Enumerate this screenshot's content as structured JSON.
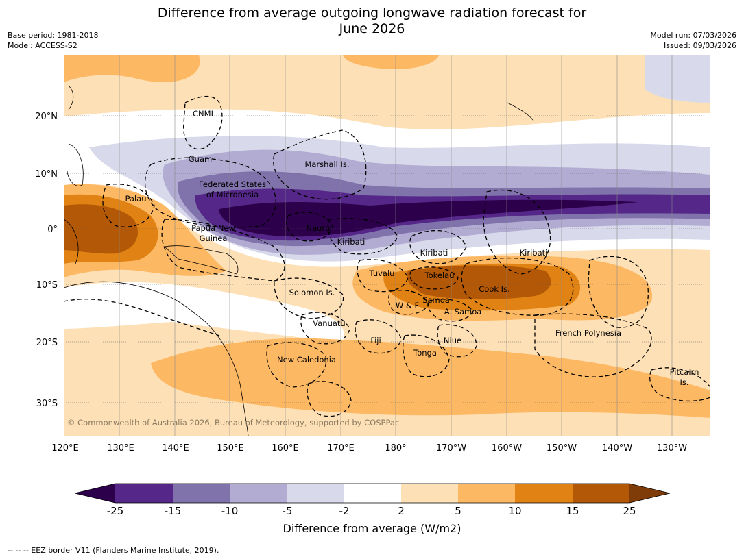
{
  "header": {
    "title_line1": "Difference from average outgoing longwave radiation forecast for",
    "title_line2": "June 2026",
    "base_period": "Base period: 1981-2018",
    "model": "Model: ACCESS-S2",
    "model_run": "Model run: 07/03/2026",
    "issued": "Issued: 09/03/2026"
  },
  "map": {
    "lon_labels": [
      "120°E",
      "130°E",
      "140°E",
      "150°E",
      "160°E",
      "170°E",
      "180°",
      "170°W",
      "160°W",
      "150°W",
      "140°W",
      "130°W"
    ],
    "lat_labels": [
      "20°N",
      "10°N",
      "0°",
      "10°S",
      "20°S",
      "30°S"
    ],
    "region_labels": [
      {
        "id": "cnmi",
        "text": "CNMI"
      },
      {
        "id": "guam",
        "text": "Guam"
      },
      {
        "id": "marshall",
        "text": "Marshall Is."
      },
      {
        "id": "fsm1",
        "text": "Federated States"
      },
      {
        "id": "fsm2",
        "text": "of Micronesia"
      },
      {
        "id": "palau",
        "text": "Palau"
      },
      {
        "id": "png1",
        "text": "Papua New"
      },
      {
        "id": "png2",
        "text": "Guinea"
      },
      {
        "id": "nauru",
        "text": "Nauru"
      },
      {
        "id": "kiribati1",
        "text": "Kiribati"
      },
      {
        "id": "kiribati2",
        "text": "Kiribati"
      },
      {
        "id": "kiribati3",
        "text": "Kiribati"
      },
      {
        "id": "tuvalu",
        "text": "Tuvalu"
      },
      {
        "id": "tokelau",
        "text": "Tokelau"
      },
      {
        "id": "cook",
        "text": "Cook Is."
      },
      {
        "id": "solomon",
        "text": "Solomon Is."
      },
      {
        "id": "wf",
        "text": "W & F"
      },
      {
        "id": "samoa",
        "text": "Samoa"
      },
      {
        "id": "asamoa",
        "text": "A. Samoa"
      },
      {
        "id": "vanuatu",
        "text": "Vanuatu"
      },
      {
        "id": "fiji",
        "text": "Fiji"
      },
      {
        "id": "niue",
        "text": "Niue"
      },
      {
        "id": "frenchpoly",
        "text": "French Polynesia"
      },
      {
        "id": "newcal",
        "text": "New Caledonia"
      },
      {
        "id": "tonga",
        "text": "Tonga"
      },
      {
        "id": "pitcairn1",
        "text": "Pitcairn"
      },
      {
        "id": "pitcairn2",
        "text": "Is."
      }
    ],
    "copyright": "© Commonwealth of Australia 2026, Bureau of Meteorology, supported by COSPPac"
  },
  "colorbar": {
    "ticks": [
      "-25",
      "-15",
      "-10",
      "-5",
      "-2",
      "2",
      "5",
      "10",
      "15",
      "25"
    ],
    "colors": [
      "#2d004b",
      "#542788",
      "#8073ac",
      "#b2abd2",
      "#d8daeb",
      "#ffffff",
      "#fee0b6",
      "#fdb863",
      "#e08214",
      "#b35806",
      "#7f3b08"
    ],
    "label": "Difference from average (W/m2)"
  },
  "footer": "--  --  -- EEZ border V11 (Flanders Marine Institute, 2019)."
}
